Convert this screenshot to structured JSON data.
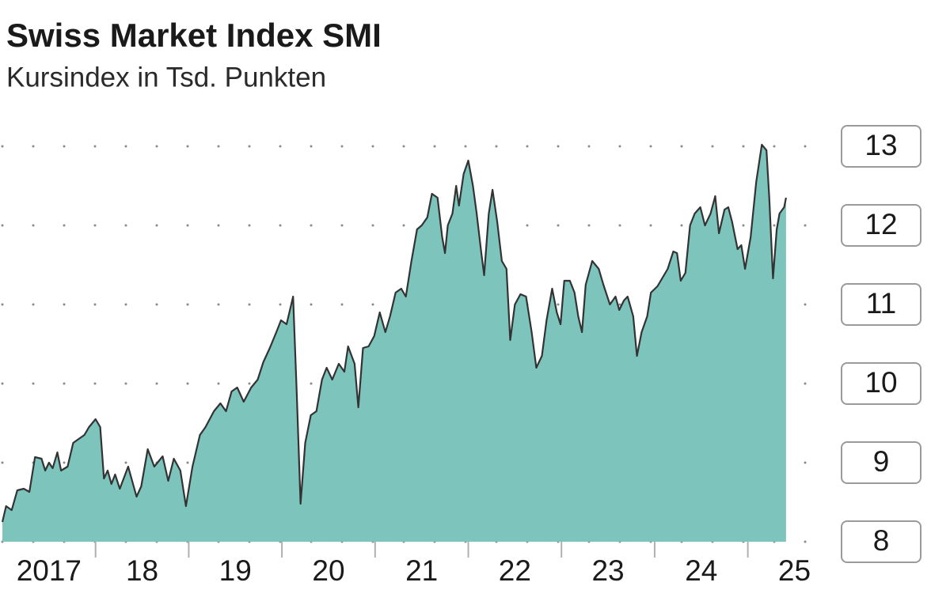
{
  "chart_data": {
    "type": "area",
    "title": "Swiss Market Index SMI",
    "subtitle": "Kursindex in Tsd. Punkten",
    "color": "#7cc4bc",
    "line_color": "#333333",
    "grid": true,
    "xlim": [
      2017,
      2025.45
    ],
    "ylim": [
      8,
      13
    ],
    "yticks": [
      8,
      9,
      10,
      11,
      12,
      13
    ],
    "xticks": [
      2017,
      {
        "value": 2018,
        "label": "18"
      },
      {
        "value": 2019,
        "label": "19"
      },
      {
        "value": 2020,
        "label": "20"
      },
      {
        "value": 2021,
        "label": "21"
      },
      {
        "value": 2022,
        "label": "22"
      },
      {
        "value": 2023,
        "label": "23"
      },
      {
        "value": 2024,
        "label": "24"
      },
      {
        "value": 2025,
        "label": "25"
      }
    ],
    "x": [
      2017.0,
      2017.04,
      2017.1,
      2017.16,
      2017.23,
      2017.29,
      2017.35,
      2017.42,
      2017.46,
      2017.5,
      2017.54,
      2017.59,
      2017.63,
      2017.7,
      2017.76,
      2017.82,
      2017.88,
      2017.93,
      2018.0,
      2018.05,
      2018.09,
      2018.13,
      2018.17,
      2018.21,
      2018.26,
      2018.35,
      2018.44,
      2018.49,
      2018.56,
      2018.63,
      2018.72,
      2018.78,
      2018.84,
      2018.91,
      2018.97,
      2019.04,
      2019.12,
      2019.18,
      2019.27,
      2019.34,
      2019.4,
      2019.46,
      2019.52,
      2019.59,
      2019.67,
      2019.74,
      2019.8,
      2019.87,
      2019.94,
      2019.99,
      2020.05,
      2020.12,
      2020.16,
      2020.2,
      2020.25,
      2020.31,
      2020.37,
      2020.43,
      2020.48,
      2020.54,
      2020.61,
      2020.67,
      2020.71,
      2020.78,
      2020.82,
      2020.87,
      2020.93,
      2020.99,
      2021.05,
      2021.11,
      2021.16,
      2021.22,
      2021.28,
      2021.33,
      2021.39,
      2021.45,
      2021.5,
      2021.56,
      2021.61,
      2021.67,
      2021.72,
      2021.75,
      2021.78,
      2021.83,
      2021.87,
      2021.9,
      2021.95,
      2022.0,
      2022.05,
      2022.09,
      2022.14,
      2022.17,
      2022.22,
      2022.26,
      2022.31,
      2022.36,
      2022.41,
      2022.45,
      2022.5,
      2022.56,
      2022.62,
      2022.68,
      2022.73,
      2022.79,
      2022.84,
      2022.9,
      2022.95,
      2022.99,
      2023.03,
      2023.09,
      2023.14,
      2023.18,
      2023.22,
      2023.26,
      2023.33,
      2023.4,
      2023.45,
      2023.52,
      2023.58,
      2023.62,
      2023.67,
      2023.71,
      2023.77,
      2023.81,
      2023.86,
      2023.92,
      2023.96,
      2024.03,
      2024.08,
      2024.14,
      2024.2,
      2024.24,
      2024.28,
      2024.33,
      2024.38,
      2024.43,
      2024.49,
      2024.54,
      2024.6,
      2024.65,
      2024.69,
      2024.75,
      2024.79,
      2024.83,
      2024.89,
      2024.93,
      2024.97,
      2025.03,
      2025.09,
      2025.15,
      2025.2,
      2025.23,
      2025.27,
      2025.31,
      2025.34,
      2025.39,
      2025.41
    ],
    "values": [
      8.25,
      8.45,
      8.4,
      8.65,
      8.67,
      8.63,
      9.07,
      9.05,
      8.9,
      9.0,
      8.93,
      9.13,
      8.9,
      8.95,
      9.25,
      9.3,
      9.35,
      9.45,
      9.55,
      9.45,
      8.8,
      8.9,
      8.73,
      8.85,
      8.67,
      8.95,
      8.57,
      8.7,
      9.17,
      8.95,
      9.08,
      8.77,
      9.05,
      8.9,
      8.45,
      8.95,
      9.35,
      9.45,
      9.65,
      9.75,
      9.65,
      9.9,
      9.95,
      9.77,
      9.95,
      10.05,
      10.27,
      10.45,
      10.65,
      10.8,
      10.75,
      11.1,
      9.85,
      8.48,
      9.25,
      9.6,
      9.65,
      10.05,
      10.2,
      10.05,
      10.25,
      10.15,
      10.47,
      10.25,
      9.7,
      10.45,
      10.47,
      10.6,
      10.9,
      10.65,
      10.85,
      11.15,
      11.2,
      11.1,
      11.55,
      11.95,
      12.0,
      12.1,
      12.4,
      12.35,
      11.85,
      11.65,
      12.0,
      12.15,
      12.5,
      12.25,
      12.65,
      12.82,
      12.5,
      12.15,
      11.65,
      11.37,
      12.15,
      12.45,
      12.05,
      11.55,
      11.45,
      10.55,
      11.0,
      11.13,
      11.1,
      10.65,
      10.2,
      10.35,
      10.8,
      11.2,
      10.9,
      10.75,
      11.3,
      11.3,
      11.15,
      10.85,
      10.65,
      11.25,
      11.55,
      11.45,
      11.25,
      11.0,
      11.1,
      10.93,
      11.05,
      11.1,
      10.85,
      10.35,
      10.65,
      10.85,
      11.15,
      11.23,
      11.33,
      11.45,
      11.67,
      11.65,
      11.3,
      11.4,
      12.0,
      12.15,
      12.23,
      12.0,
      12.15,
      12.37,
      11.9,
      12.2,
      12.23,
      12.05,
      11.7,
      11.75,
      11.45,
      11.85,
      12.55,
      13.02,
      12.95,
      12.35,
      11.33,
      11.95,
      12.15,
      12.23,
      12.35
    ]
  }
}
